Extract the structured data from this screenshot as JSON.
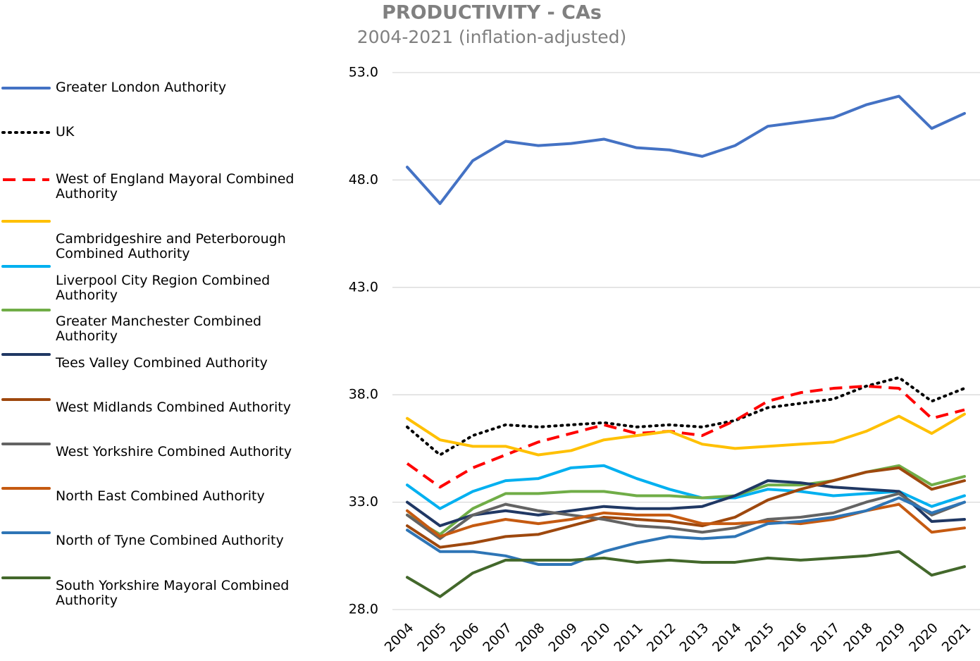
{
  "chart_data": {
    "type": "line",
    "title": "PRODUCTIVITY - CAs",
    "subtitle": "2004-2021 (inflation-adjusted)",
    "categories": [
      "2004",
      "2005",
      "2006",
      "2007",
      "2008",
      "2009",
      "2010",
      "2011",
      "2012",
      "2013",
      "2014",
      "2015",
      "2016",
      "2017",
      "2018",
      "2019",
      "2020",
      "2021"
    ],
    "ylim": [
      28,
      53
    ],
    "yticks": [
      {
        "value": 28,
        "label": "28.0"
      },
      {
        "value": 33,
        "label": "33.0"
      },
      {
        "value": 38,
        "label": "38.0"
      },
      {
        "value": 43,
        "label": "43.0"
      },
      {
        "value": 48,
        "label": "48.0"
      },
      {
        "value": 53,
        "label": "53.0"
      }
    ],
    "grid": true,
    "legend": "left",
    "series": [
      {
        "name": "Greater London Authority",
        "color": "#4472c4",
        "line_style": "solid",
        "values": [
          48.6,
          46.9,
          48.9,
          49.8,
          49.6,
          49.7,
          49.9,
          49.5,
          49.4,
          49.1,
          49.6,
          50.5,
          50.7,
          50.9,
          51.5,
          51.9,
          50.4,
          51.1
        ]
      },
      {
        "name": "UK",
        "color": "#000000",
        "line_style": "dotted",
        "values": [
          36.5,
          35.2,
          36.1,
          36.6,
          36.5,
          36.6,
          36.7,
          36.5,
          36.6,
          36.5,
          36.8,
          37.4,
          37.6,
          37.8,
          38.4,
          38.8,
          37.7,
          38.3
        ]
      },
      {
        "name": "West of England Mayoral Combined Authority",
        "color": "#ff0000",
        "line_style": "dashed",
        "values": [
          34.8,
          33.7,
          34.6,
          35.2,
          35.8,
          36.2,
          36.6,
          36.2,
          36.3,
          36.1,
          36.8,
          37.7,
          38.1,
          38.3,
          38.4,
          38.3,
          36.9,
          37.3
        ]
      },
      {
        "name": "Cambridgeshire and Peterborough Combined Authority",
        "color": "#ffc000",
        "line_style": "solid",
        "values": [
          36.9,
          35.9,
          35.6,
          35.6,
          35.2,
          35.4,
          35.9,
          36.1,
          36.3,
          35.7,
          35.5,
          35.6,
          35.7,
          35.8,
          36.3,
          37.0,
          36.2,
          37.1
        ]
      },
      {
        "name": "Liverpool City Region Combined Authority",
        "color": "#00b0f0",
        "line_style": "solid",
        "values": [
          33.8,
          32.7,
          33.5,
          34.0,
          34.1,
          34.6,
          34.7,
          34.1,
          33.6,
          33.2,
          33.2,
          33.6,
          33.5,
          33.3,
          33.4,
          33.5,
          32.8,
          33.3
        ]
      },
      {
        "name": "Greater Manchester Combined Authority",
        "color": "#70ad47",
        "line_style": "solid",
        "values": [
          32.4,
          31.5,
          32.7,
          33.4,
          33.4,
          33.5,
          33.5,
          33.3,
          33.3,
          33.2,
          33.3,
          33.8,
          33.8,
          34.0,
          34.4,
          34.7,
          33.8,
          34.2
        ]
      },
      {
        "name": "Tees Valley Combined Authority",
        "color": "#203864",
        "line_style": "solid",
        "values": [
          33.0,
          31.9,
          32.4,
          32.6,
          32.4,
          32.6,
          32.8,
          32.7,
          32.7,
          32.8,
          33.3,
          34.0,
          33.9,
          33.7,
          33.6,
          33.5,
          32.1,
          32.2
        ]
      },
      {
        "name": "West Midlands Combined Authority",
        "color": "#9e480e",
        "line_style": "solid",
        "values": [
          31.9,
          30.9,
          31.1,
          31.4,
          31.5,
          31.9,
          32.3,
          32.2,
          32.1,
          31.9,
          32.3,
          33.1,
          33.6,
          34.0,
          34.4,
          34.6,
          33.6,
          34.0
        ]
      },
      {
        "name": "West Yorkshire Combined Authority",
        "color": "#636363",
        "line_style": "solid",
        "values": [
          32.4,
          31.3,
          32.4,
          32.9,
          32.6,
          32.4,
          32.2,
          31.9,
          31.8,
          31.6,
          31.8,
          32.2,
          32.3,
          32.5,
          33.0,
          33.4,
          32.4,
          33.0
        ]
      },
      {
        "name": "North East Combined Authority",
        "color": "#c55a11",
        "line_style": "solid",
        "values": [
          32.6,
          31.4,
          31.9,
          32.2,
          32.0,
          32.2,
          32.5,
          32.4,
          32.4,
          32.0,
          32.0,
          32.1,
          32.0,
          32.2,
          32.6,
          32.9,
          31.6,
          31.8
        ]
      },
      {
        "name": "North of Tyne Combined Authority",
        "color": "#2e75b6",
        "line_style": "solid",
        "values": [
          31.7,
          30.7,
          30.7,
          30.5,
          30.1,
          30.1,
          30.7,
          31.1,
          31.4,
          31.3,
          31.4,
          32.0,
          32.1,
          32.3,
          32.6,
          33.2,
          32.5,
          33.0
        ]
      },
      {
        "name": "South Yorkshire Mayoral Combined Authority",
        "color": "#43682b",
        "line_style": "solid",
        "values": [
          29.5,
          28.6,
          29.7,
          30.3,
          30.3,
          30.3,
          30.4,
          30.2,
          30.3,
          30.2,
          30.2,
          30.4,
          30.3,
          30.4,
          30.5,
          30.7,
          29.6,
          30.0
        ]
      }
    ]
  }
}
